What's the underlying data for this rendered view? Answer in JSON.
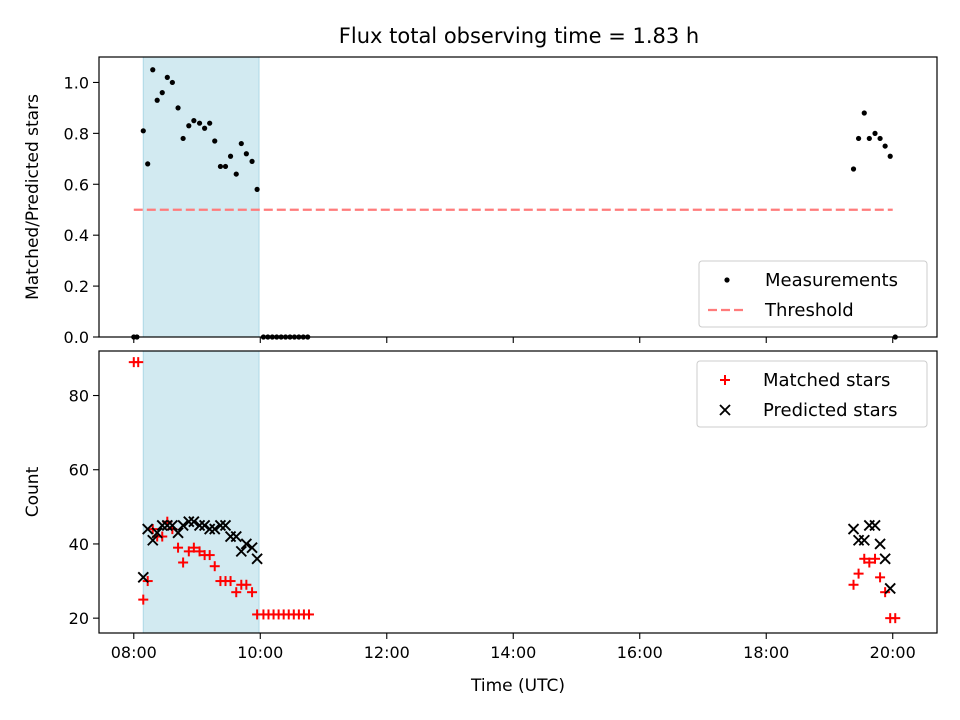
{
  "chart_data": [
    {
      "type": "scatter",
      "title": "Flux total observing time = 1.83 h",
      "xlabel": "",
      "ylabel": "Matched/Predicted stars",
      "xlim": [
        7.45,
        20.7
      ],
      "ylim": [
        0,
        1.1
      ],
      "xticks": [
        8,
        10,
        12,
        14,
        16,
        18,
        20
      ],
      "yticks": [
        0.0,
        0.2,
        0.4,
        0.6,
        0.8,
        1.0
      ],
      "ytick_labels": [
        "0.0",
        "0.2",
        "0.4",
        "0.6",
        "0.8",
        "1.0"
      ],
      "shaded_span": {
        "x": [
          8.15,
          9.98
        ],
        "color": "#add8e6"
      },
      "legend": {
        "position": "lower-right"
      },
      "series": [
        {
          "name": "Measurements",
          "marker": "dot",
          "color": "#000000",
          "points": [
            [
              8.0,
              0.0
            ],
            [
              8.05,
              0.0
            ],
            [
              8.15,
              0.81
            ],
            [
              8.22,
              0.68
            ],
            [
              8.3,
              1.05
            ],
            [
              8.37,
              0.93
            ],
            [
              8.45,
              0.96
            ],
            [
              8.53,
              1.02
            ],
            [
              8.61,
              1.0
            ],
            [
              8.7,
              0.9
            ],
            [
              8.78,
              0.78
            ],
            [
              8.87,
              0.83
            ],
            [
              8.95,
              0.85
            ],
            [
              9.04,
              0.84
            ],
            [
              9.12,
              0.82
            ],
            [
              9.2,
              0.84
            ],
            [
              9.28,
              0.77
            ],
            [
              9.37,
              0.67
            ],
            [
              9.45,
              0.67
            ],
            [
              9.53,
              0.71
            ],
            [
              9.62,
              0.64
            ],
            [
              9.7,
              0.76
            ],
            [
              9.78,
              0.72
            ],
            [
              9.87,
              0.69
            ],
            [
              9.95,
              0.58
            ],
            [
              10.05,
              0.0
            ],
            [
              10.12,
              0.0
            ],
            [
              10.19,
              0.0
            ],
            [
              10.26,
              0.0
            ],
            [
              10.33,
              0.0
            ],
            [
              10.4,
              0.0
            ],
            [
              10.47,
              0.0
            ],
            [
              10.54,
              0.0
            ],
            [
              10.61,
              0.0
            ],
            [
              10.68,
              0.0
            ],
            [
              10.75,
              0.0
            ],
            [
              19.38,
              0.66
            ],
            [
              19.46,
              0.78
            ],
            [
              19.55,
              0.88
            ],
            [
              19.63,
              0.78
            ],
            [
              19.72,
              0.8
            ],
            [
              19.8,
              0.78
            ],
            [
              19.88,
              0.75
            ],
            [
              19.96,
              0.71
            ],
            [
              20.04,
              0.0
            ]
          ]
        },
        {
          "name": "Threshold",
          "marker": "dashed-line",
          "color": "#ff7b7b",
          "points": [
            [
              8.0,
              0.5
            ],
            [
              20.0,
              0.5
            ]
          ]
        }
      ]
    },
    {
      "type": "scatter",
      "title": "",
      "xlabel": "Time (UTC)",
      "ylabel": "Count",
      "xlim": [
        7.45,
        20.7
      ],
      "ylim": [
        16,
        92
      ],
      "xticks": [
        8,
        10,
        12,
        14,
        16,
        18,
        20
      ],
      "xtick_labels": [
        "08:00",
        "10:00",
        "12:00",
        "14:00",
        "16:00",
        "18:00",
        "20:00"
      ],
      "yticks": [
        20,
        40,
        60,
        80
      ],
      "ytick_labels": [
        "20",
        "40",
        "60",
        "80"
      ],
      "shaded_span": {
        "x": [
          8.15,
          9.98
        ],
        "color": "#add8e6"
      },
      "legend": {
        "position": "upper-right"
      },
      "series": [
        {
          "name": "Matched stars",
          "marker": "plus",
          "color": "#ff0000",
          "points": [
            [
              8.0,
              89
            ],
            [
              8.07,
              89
            ],
            [
              8.15,
              25
            ],
            [
              8.22,
              30
            ],
            [
              8.3,
              44
            ],
            [
              8.37,
              42
            ],
            [
              8.45,
              42
            ],
            [
              8.53,
              46
            ],
            [
              8.61,
              44
            ],
            [
              8.7,
              39
            ],
            [
              8.78,
              35
            ],
            [
              8.87,
              38
            ],
            [
              8.95,
              39
            ],
            [
              9.04,
              38
            ],
            [
              9.12,
              37
            ],
            [
              9.2,
              37
            ],
            [
              9.28,
              34
            ],
            [
              9.37,
              30
            ],
            [
              9.45,
              30
            ],
            [
              9.53,
              30
            ],
            [
              9.62,
              27
            ],
            [
              9.7,
              29
            ],
            [
              9.78,
              29
            ],
            [
              9.87,
              27
            ],
            [
              9.95,
              21
            ],
            [
              10.05,
              21
            ],
            [
              10.13,
              21
            ],
            [
              10.21,
              21
            ],
            [
              10.29,
              21
            ],
            [
              10.37,
              21
            ],
            [
              10.45,
              21
            ],
            [
              10.53,
              21
            ],
            [
              10.61,
              21
            ],
            [
              10.69,
              21
            ],
            [
              10.77,
              21
            ],
            [
              19.38,
              29
            ],
            [
              19.46,
              32
            ],
            [
              19.55,
              36
            ],
            [
              19.63,
              35
            ],
            [
              19.72,
              36
            ],
            [
              19.8,
              31
            ],
            [
              19.88,
              27
            ],
            [
              19.96,
              20
            ],
            [
              20.04,
              20
            ]
          ]
        },
        {
          "name": "Predicted stars",
          "marker": "x",
          "color": "#000000",
          "points": [
            [
              8.15,
              31
            ],
            [
              8.22,
              44
            ],
            [
              8.3,
              41
            ],
            [
              8.37,
              43
            ],
            [
              8.45,
              45
            ],
            [
              8.53,
              45
            ],
            [
              8.61,
              45
            ],
            [
              8.7,
              43
            ],
            [
              8.78,
              45
            ],
            [
              8.87,
              46
            ],
            [
              8.95,
              46
            ],
            [
              9.04,
              45
            ],
            [
              9.12,
              45
            ],
            [
              9.2,
              44
            ],
            [
              9.28,
              44
            ],
            [
              9.37,
              45
            ],
            [
              9.45,
              45
            ],
            [
              9.53,
              42
            ],
            [
              9.62,
              42
            ],
            [
              9.7,
              38
            ],
            [
              9.78,
              40
            ],
            [
              9.87,
              39
            ],
            [
              9.95,
              36
            ],
            [
              19.38,
              44
            ],
            [
              19.46,
              41
            ],
            [
              19.55,
              41
            ],
            [
              19.63,
              45
            ],
            [
              19.72,
              45
            ],
            [
              19.8,
              40
            ],
            [
              19.88,
              36
            ],
            [
              19.96,
              28
            ]
          ]
        }
      ]
    }
  ]
}
